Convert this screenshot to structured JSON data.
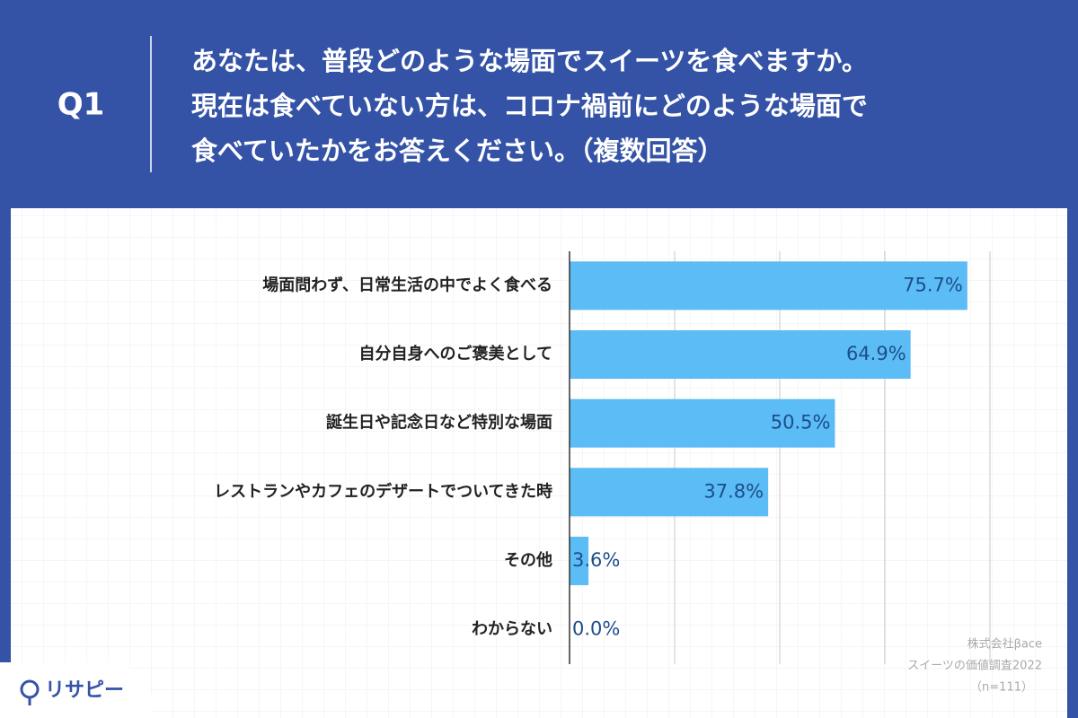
{
  "header": {
    "label": "Q1",
    "question": [
      "あなたは、普段どのような場面でスイーツを食べますか。",
      "現在は食べていない方は、コロナ禍前にどのような場面で",
      "食べていたかをお答えください。（複数回答）"
    ]
  },
  "chart_data": {
    "type": "bar",
    "orientation": "horizontal",
    "categories": [
      "場面問わず、日常生活の中でよく食べる",
      "自分自身へのご褒美として",
      "誕生日や記念日など特別な場面",
      "レストランやカフェのデザートでついてきた時",
      "その他",
      "わからない"
    ],
    "values": [
      75.7,
      64.9,
      50.5,
      37.8,
      3.6,
      0.0
    ],
    "value_labels": [
      "75.7%",
      "64.9%",
      "50.5%",
      "37.8%",
      "3.6%",
      "0.0%"
    ],
    "color": "#5bbcf6",
    "xlim": [
      0,
      80
    ],
    "xticks": [
      20,
      40,
      60,
      80
    ],
    "grid": true
  },
  "source": [
    "株式会社βace",
    "スイーツの価値調査2022",
    "（n=111）"
  ],
  "logo": "リサピー"
}
